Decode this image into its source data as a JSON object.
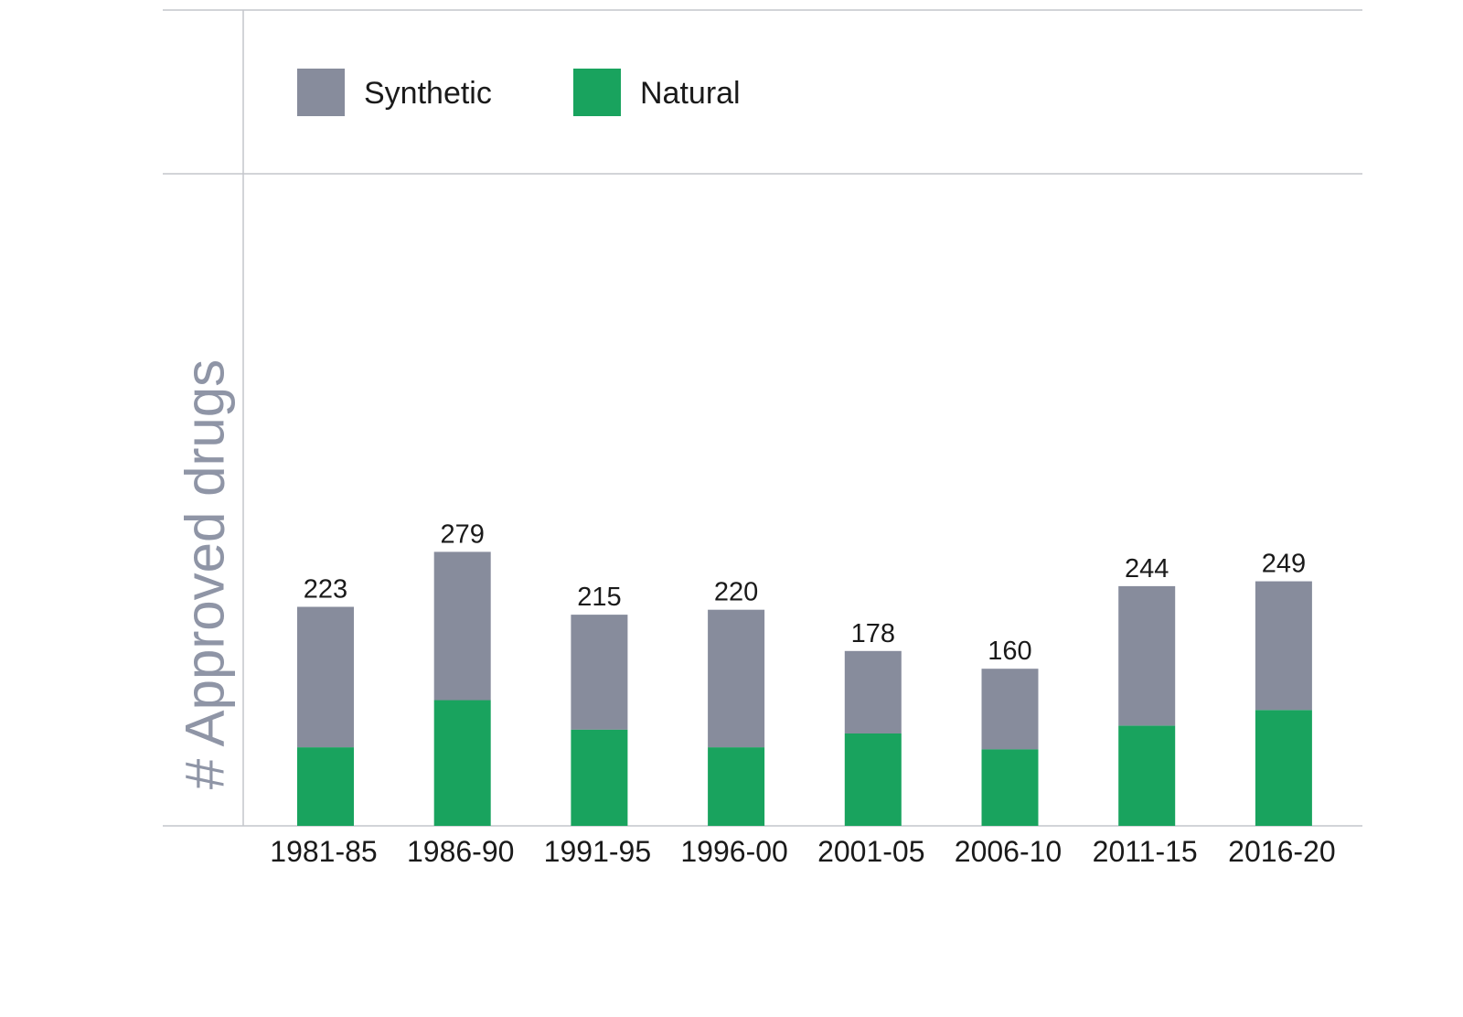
{
  "chart_data": {
    "type": "bar",
    "stacked": true,
    "categories": [
      "1981-85",
      "1986-90",
      "1991-95",
      "1996-00",
      "2001-05",
      "2006-10",
      "2011-15",
      "2016-20"
    ],
    "series": [
      {
        "name": "Natural",
        "color": "#19a35e",
        "values": [
          80,
          128,
          98,
          80,
          94,
          78,
          102,
          118
        ]
      },
      {
        "name": "Synthetic",
        "color": "#878c9c",
        "values": [
          143,
          151,
          117,
          140,
          84,
          82,
          142,
          131
        ]
      }
    ],
    "totals": [
      "223",
      "279",
      "215",
      "220",
      "178",
      "160",
      "244",
      "249"
    ],
    "title": "",
    "xlabel": "",
    "ylabel": "# Approved drugs",
    "ylim": [
      0,
      290
    ],
    "legend": {
      "placement": "top-left",
      "items": [
        {
          "label": "Synthetic",
          "color": "#878c9c"
        },
        {
          "label": "Natural",
          "color": "#19a35e"
        }
      ]
    },
    "grid": false,
    "line_color": "#c4c6cc"
  }
}
